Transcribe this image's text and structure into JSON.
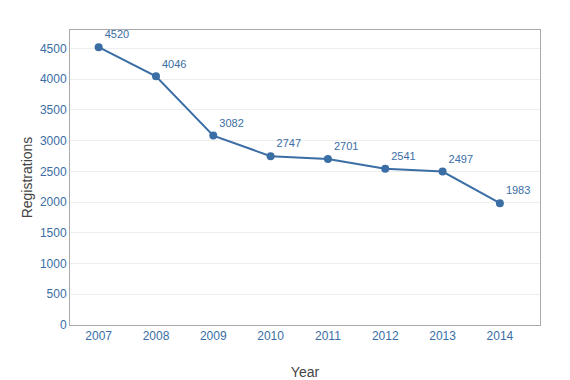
{
  "chart_data": {
    "type": "line",
    "x": [
      2007,
      2008,
      2009,
      2010,
      2011,
      2012,
      2013,
      2014
    ],
    "values": [
      4520,
      4046,
      3082,
      2747,
      2701,
      2541,
      2497,
      1983
    ],
    "color": "#3A6EA5",
    "marker": "circle",
    "xlabel": "Year",
    "ylabel": "Registrations",
    "xlim": [
      2006.5,
      2014.7
    ],
    "xticks": [
      2007,
      2008,
      2009,
      2010,
      2011,
      2012,
      2013,
      2014
    ],
    "ylim": [
      0,
      4800
    ],
    "yticks": [
      0,
      500,
      1000,
      1500,
      2000,
      2500,
      3000,
      3500,
      4000,
      4500
    ],
    "grid": true,
    "data_labels": true
  }
}
